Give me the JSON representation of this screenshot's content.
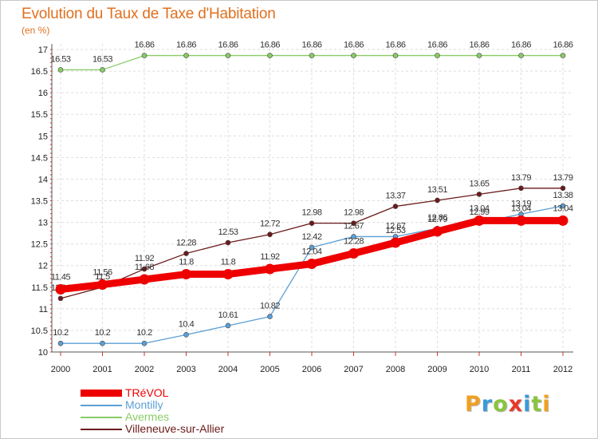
{
  "chart_data": {
    "type": "line",
    "title": "Evolution du Taux de Taxe d'Habitation",
    "ylabel": "(en %)",
    "x": [
      "2000",
      "2001",
      "2002",
      "2003",
      "2004",
      "2005",
      "2006",
      "2007",
      "2008",
      "2009",
      "2010",
      "2011",
      "2012"
    ],
    "ylim": [
      10,
      17
    ],
    "yticks": [
      "10",
      "10.5",
      "11",
      "11.5",
      "12",
      "12.5",
      "13",
      "13.5",
      "14",
      "14.5",
      "15",
      "15.5",
      "16",
      "16.5",
      "17"
    ],
    "grid": true,
    "legend_position": "bottom-left",
    "series": [
      {
        "name": "Villeneuve-sur-Allier",
        "color": "#6b1a1a",
        "values": [
          11.24,
          11.5,
          11.92,
          12.28,
          12.53,
          12.72,
          12.98,
          12.98,
          13.37,
          13.51,
          13.65,
          13.79,
          13.79
        ],
        "labels": [
          "11.24",
          "11.5",
          "11.92",
          "12.28",
          "12.53",
          "12.72",
          "12.98",
          "12.98",
          "13.37",
          "13.51",
          "13.65",
          "13.79",
          "13.79"
        ]
      },
      {
        "name": "Avermes",
        "color": "#88cc66",
        "values": [
          16.53,
          16.53,
          16.86,
          16.86,
          16.86,
          16.86,
          16.86,
          16.86,
          16.86,
          16.86,
          16.86,
          16.86,
          16.86
        ],
        "labels": [
          "16.53",
          "16.53",
          "16.86",
          "16.86",
          "16.86",
          "16.86",
          "16.86",
          "16.86",
          "16.86",
          "16.86",
          "16.86",
          "16.86",
          "16.86"
        ]
      },
      {
        "name": "Montilly",
        "color": "#5b9fd5",
        "values": [
          10.2,
          10.2,
          10.2,
          10.4,
          10.61,
          10.82,
          12.42,
          12.67,
          12.67,
          12.86,
          12.99,
          13.19,
          13.38
        ],
        "labels": [
          "10.2",
          "10.2",
          "10.2",
          "10.4",
          "10.61",
          "10.82",
          "12.42",
          "12.67",
          "12.67",
          "12.86",
          "12.99",
          "13.19",
          "13.38"
        ]
      },
      {
        "name": "TRéVOL",
        "color": "#ee0000",
        "values": [
          11.45,
          11.56,
          11.68,
          11.8,
          11.8,
          11.92,
          12.04,
          12.28,
          12.53,
          12.79,
          13.04,
          13.04,
          13.04
        ],
        "labels": [
          "11.45",
          "11.56",
          "11.68",
          "11.8",
          "11.8",
          "11.92",
          "12.04",
          "12.28",
          "12.53",
          "12.79",
          "13.04",
          "13.04",
          "13.04"
        ]
      }
    ],
    "legend": [
      {
        "name": "TRéVOL",
        "color": "#ee0000"
      },
      {
        "name": "Montilly",
        "color": "#5b9fd5"
      },
      {
        "name": "Avermes",
        "color": "#88cc66"
      },
      {
        "name": "Villeneuve-sur-Allier",
        "color": "#6b1a1a"
      }
    ]
  },
  "branding": {
    "logo_letters": [
      "P",
      "r",
      "o",
      "x",
      "i",
      "t",
      "i"
    ],
    "logo_colors": [
      "#f0a020",
      "#3a9ad9",
      "#8ac43f",
      "#e8382c",
      "#3a9ad9",
      "#8ac43f",
      "#f0a020"
    ]
  }
}
